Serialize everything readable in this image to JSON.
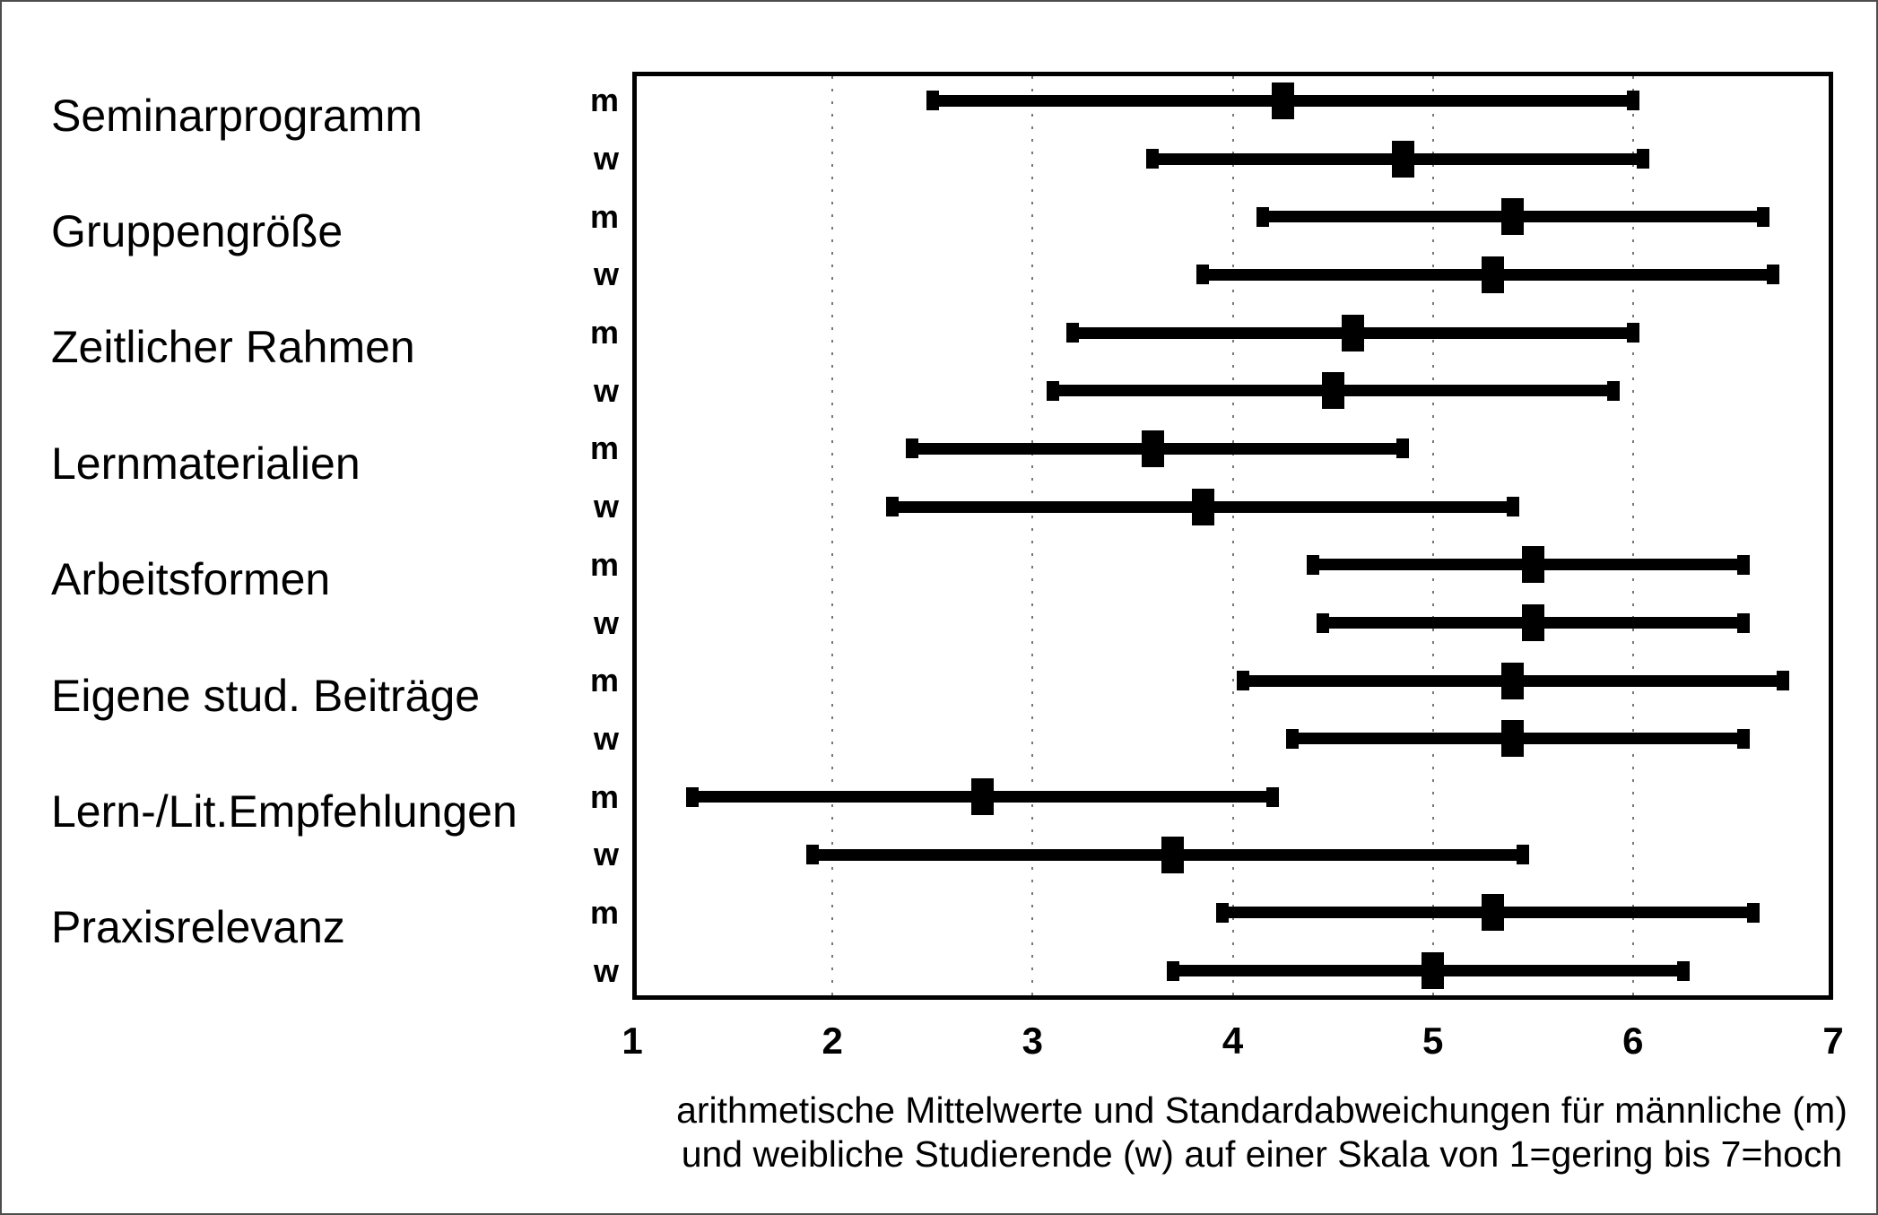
{
  "chart_data": {
    "type": "errorbar",
    "orientation": "horizontal",
    "title": "",
    "x_axis": {
      "min": 1,
      "max": 7,
      "tick_labels": [
        "1",
        "2",
        "3",
        "4",
        "5",
        "6",
        "7"
      ],
      "gridlines_at": [
        2,
        3,
        4,
        5,
        6
      ],
      "scale_note": "1=gering bis 7=hoch"
    },
    "categories": [
      "Seminarprogramm",
      "Gruppengröße",
      "Zeitlicher Rahmen",
      "Lernmaterialien",
      "Arbeitsformen",
      "Eigene stud. Beiträge",
      "Lern-/Lit.Empfehlungen",
      "Praxisrelevanz"
    ],
    "series": [
      {
        "name": "m",
        "means": [
          4.25,
          5.4,
          4.6,
          3.6,
          5.5,
          5.4,
          2.75,
          5.3
        ],
        "lower": [
          2.5,
          4.15,
          3.2,
          2.4,
          4.4,
          4.05,
          1.3,
          3.95
        ],
        "upper": [
          6.0,
          6.65,
          6.0,
          4.85,
          6.55,
          6.75,
          4.2,
          6.6
        ]
      },
      {
        "name": "w",
        "means": [
          4.85,
          5.3,
          4.5,
          3.85,
          5.5,
          5.4,
          3.7,
          5.0
        ],
        "lower": [
          3.6,
          3.85,
          3.1,
          2.3,
          4.45,
          4.3,
          1.9,
          3.7
        ],
        "upper": [
          6.05,
          6.7,
          5.9,
          5.4,
          6.55,
          6.55,
          5.45,
          6.25
        ]
      }
    ],
    "caption_lines": [
      "arithmetische Mittelwerte und Standardabweichungen für männliche (m)",
      "und weibliche Studierende (w) auf einer Skala von 1=gering bis 7=hoch"
    ]
  },
  "colors": {
    "bar": "#000000",
    "grid": "#777777",
    "frame": "#000000",
    "background": "#ffffff",
    "outer_border": "#4d4d4d"
  }
}
